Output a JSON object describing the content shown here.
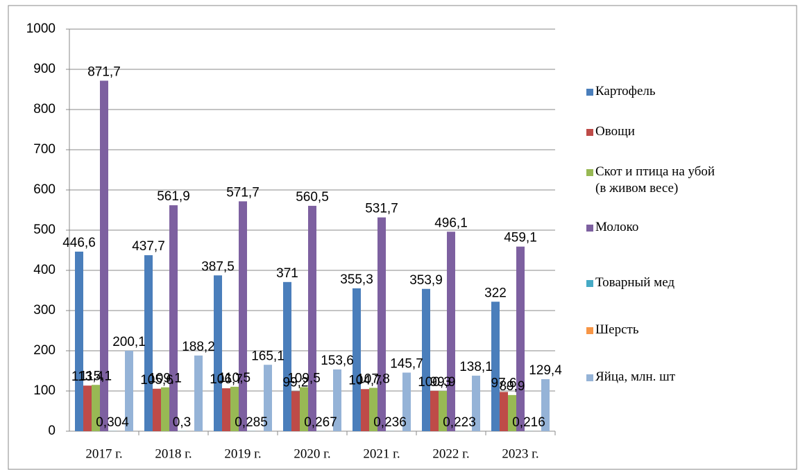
{
  "chart_data": {
    "type": "bar",
    "categories": [
      "2017 г.",
      "2018 г.",
      "2019 г.",
      "2020 г.",
      "2021 г.",
      "2022 г.",
      "2023 г."
    ],
    "ylim": [
      0,
      1000
    ],
    "yticks": [
      0,
      100,
      200,
      300,
      400,
      500,
      600,
      700,
      800,
      900,
      1000
    ],
    "grid": true,
    "series": [
      {
        "name": "Картофель",
        "color": "#4a7ebb",
        "values": [
          446.6,
          437.7,
          387.5,
          371,
          355.3,
          353.9,
          322
        ],
        "value_labels": [
          "446,6",
          "437,7",
          "387,5",
          "371",
          "355,3",
          "353,9",
          "322"
        ]
      },
      {
        "name": "Овощи",
        "color": "#be4b48",
        "values": [
          113.4,
          105.6,
          106.7,
          99.2,
          104.7,
          100.3,
          97.6
        ],
        "value_labels": [
          "113,4",
          "105,6",
          "106,7",
          "99,2",
          "104,7",
          "100,3",
          "97,6"
        ]
      },
      {
        "name": "Скот и птица на убой (в живом весе)",
        "color": "#98b954",
        "values": [
          115.1,
          109.1,
          110.5,
          109.5,
          107.8,
          99.9,
          89.9
        ],
        "value_labels": [
          "115,1",
          "109,1",
          "110,5",
          "109,5",
          "107,8",
          "99,9",
          "89,9"
        ]
      },
      {
        "name": "Молоко",
        "color": "#7d60a0",
        "values": [
          871.7,
          561.9,
          571.7,
          560.5,
          531.7,
          496.1,
          459.1
        ],
        "value_labels": [
          "871,7",
          "561,9",
          "571,7",
          "560,5",
          "531,7",
          "496,1",
          "459,1"
        ]
      },
      {
        "name": "Товарный мед",
        "color": "#46aac5",
        "values": [
          0.304,
          0.3,
          0.285,
          0.267,
          0.236,
          0.223,
          0.216
        ],
        "value_labels": [
          "0,304",
          "0,3",
          "0,285",
          "0,267",
          "0,236",
          "0,223",
          "0,216"
        ]
      },
      {
        "name": "Шерсть",
        "color": "#f79646",
        "values": [
          0,
          0,
          0,
          0,
          0,
          0,
          0
        ]
      },
      {
        "name": "Яйца, млн. шт",
        "color": "#95b3d7",
        "values": [
          200.1,
          188.2,
          165.1,
          153.6,
          145.7,
          138.1,
          129.4
        ],
        "value_labels": [
          "200,1",
          "188,2",
          "165,1",
          "153,6",
          "145,7",
          "138,1",
          "129,4"
        ]
      }
    ]
  }
}
